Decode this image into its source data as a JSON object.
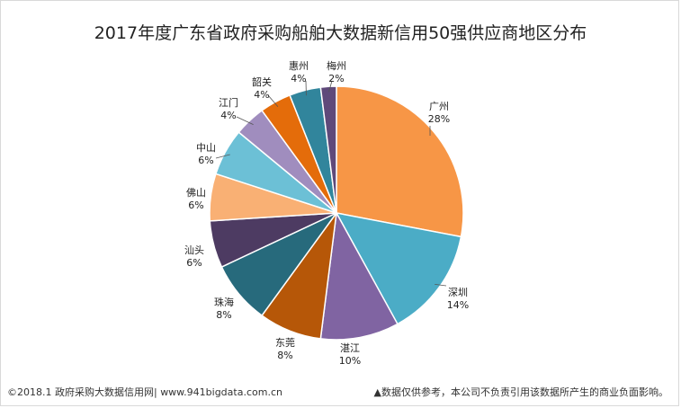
{
  "chart_data": {
    "type": "pie",
    "title": "2017年度广东省政府采购船舶大数据新信用50强供应商地区分布",
    "slices": [
      {
        "name": "广州",
        "value": 28,
        "label": "28%",
        "color": "#F79646"
      },
      {
        "name": "深圳",
        "value": 14,
        "label": "14%",
        "color": "#4BACC6"
      },
      {
        "name": "湛江",
        "value": 10,
        "label": "10%",
        "color": "#8064A2"
      },
      {
        "name": "东莞",
        "value": 8,
        "label": "8%",
        "color": "#B65708"
      },
      {
        "name": "珠海",
        "value": 8,
        "label": "8%",
        "color": "#276A7C"
      },
      {
        "name": "汕头",
        "value": 6,
        "label": "6%",
        "color": "#4D3B62"
      },
      {
        "name": "佛山",
        "value": 6,
        "label": "6%",
        "color": "#F9B074"
      },
      {
        "name": "中山",
        "value": 6,
        "label": "6%",
        "color": "#6CC0D6"
      },
      {
        "name": "江门",
        "value": 4,
        "label": "4%",
        "color": "#A08DBE"
      },
      {
        "name": "韶关",
        "value": 4,
        "label": "4%",
        "color": "#E46C0A"
      },
      {
        "name": "惠州",
        "value": 4,
        "label": "4%",
        "color": "#31859C"
      },
      {
        "name": "梅州",
        "value": 2,
        "label": "2%",
        "color": "#5F497A"
      }
    ]
  },
  "footer": {
    "source": "©2018.1 政府采购大数据信用网| www.941bigdata.com.cn",
    "disclaimer": "▲数据仅供参考，本公司不负责引用该数据所产生的商业负面影响。"
  }
}
